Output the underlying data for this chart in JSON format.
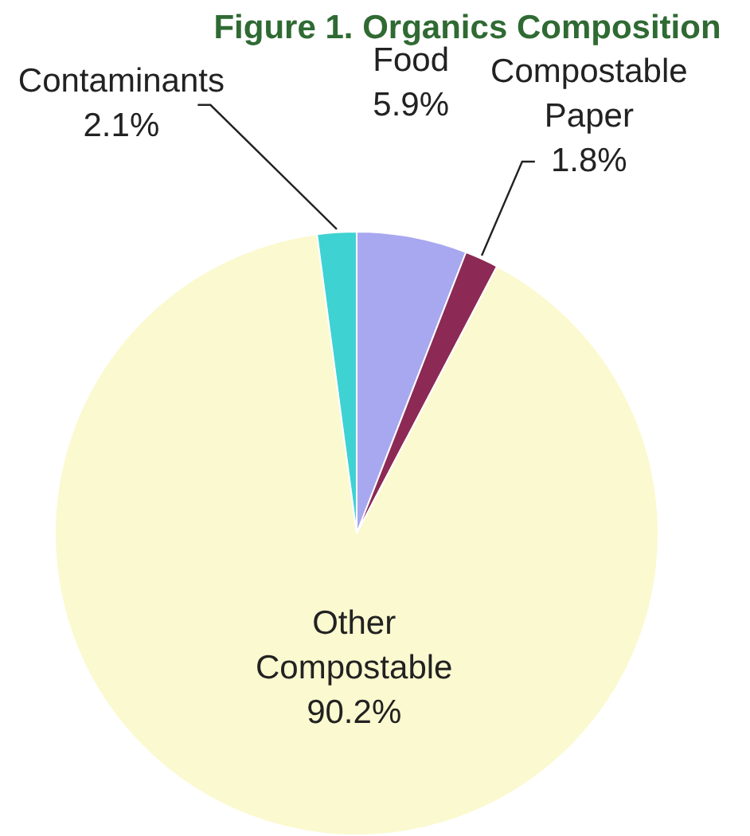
{
  "chart_data": {
    "type": "pie",
    "title": "Figure 1. Organics Composition",
    "categories": [
      "Food",
      "Compostable Paper",
      "Other Compostable",
      "Contaminants"
    ],
    "values": [
      5.9,
      1.8,
      90.2,
      2.1
    ],
    "value_labels": [
      "5.9%",
      "1.8%",
      "90.2%",
      "2.1%"
    ],
    "colors": [
      "#a8a8f0",
      "#8c2a55",
      "#fbf9cf",
      "#3fd2d2"
    ],
    "legend": false
  }
}
